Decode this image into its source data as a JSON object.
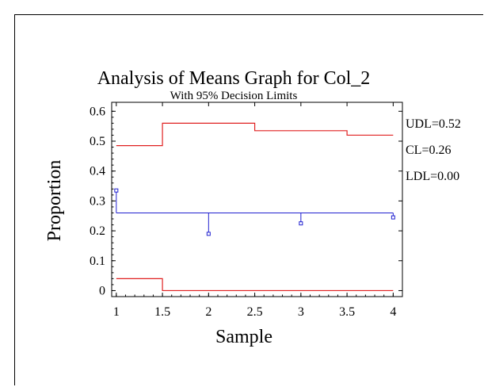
{
  "chart_data": {
    "type": "line",
    "title": "Analysis of Means Graph for Col_2",
    "subtitle": "With 95% Decision Limits",
    "xlabel": "Sample",
    "ylabel": "Proportion",
    "xlim": [
      0.95,
      4.1
    ],
    "ylim": [
      -0.02,
      0.63
    ],
    "x_ticks": [
      1,
      1.5,
      2,
      2.5,
      3,
      3.5,
      4
    ],
    "x_tick_labels": [
      "1",
      "1.5",
      "2",
      "2.5",
      "3",
      "3.5",
      "4"
    ],
    "y_ticks": [
      0,
      0.1,
      0.2,
      0.3,
      0.4,
      0.5,
      0.6
    ],
    "y_tick_labels": [
      "0",
      "0.1",
      "0.2",
      "0.3",
      "0.4",
      "0.5",
      "0.6"
    ],
    "center_line": 0.26,
    "samples": [
      {
        "x": 1,
        "proportion": 0.335,
        "udl": 0.485,
        "ldl": 0.04
      },
      {
        "x": 2,
        "proportion": 0.19,
        "udl": 0.56,
        "ldl": 0.0
      },
      {
        "x": 3,
        "proportion": 0.225,
        "udl": 0.535,
        "ldl": 0.0
      },
      {
        "x": 4,
        "proportion": 0.245,
        "udl": 0.52,
        "ldl": 0.0
      }
    ],
    "annotations": [
      "UDL=0.52",
      "CL=0.26",
      "LDL=0.00"
    ],
    "colors": {
      "limits": "#e02020",
      "center": "#2020d0",
      "points": "#2020d0",
      "axes": "#000000"
    },
    "grid": false
  }
}
